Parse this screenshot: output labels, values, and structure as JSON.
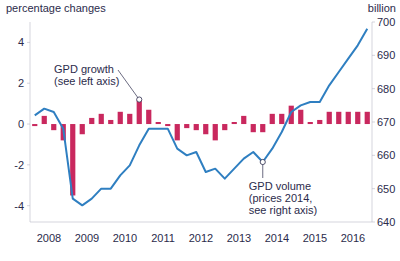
{
  "chart_data": {
    "type": "bar",
    "y_label": "percentage changes",
    "y2_label": "billion",
    "categories": [
      null,
      "2008",
      null,
      null,
      null,
      "2009",
      null,
      null,
      null,
      "2010",
      null,
      null,
      null,
      "2011",
      null,
      null,
      null,
      "2012",
      null,
      null,
      null,
      "2013",
      null,
      null,
      null,
      "2014",
      null,
      null,
      null,
      "2015",
      null,
      null,
      null,
      "2016",
      null,
      null
    ],
    "ylim": [
      -4.8,
      5
    ],
    "yticks": [
      -4,
      -2,
      0,
      2,
      4
    ],
    "y2lim": [
      640,
      700
    ],
    "y2ticks": [
      640,
      650,
      660,
      670,
      680,
      690,
      700
    ],
    "series": [
      {
        "type": "bar",
        "color": "#c9285e",
        "values": [
          -0.1,
          0.4,
          -0.3,
          -0.8,
          -3.5,
          -0.5,
          0.3,
          0.5,
          0.2,
          0.6,
          0.5,
          1.2,
          0.7,
          0.1,
          -0.1,
          -0.8,
          -0.2,
          -0.3,
          -0.5,
          -0.8,
          -0.3,
          0.1,
          0.4,
          -0.4,
          -0.4,
          0.5,
          0.5,
          0.9,
          0.7,
          0.1,
          0.2,
          0.6,
          0.6,
          0.6,
          0.6,
          0.6
        ]
      },
      {
        "type": "line",
        "axis": "y2",
        "color": "#2f7fc1",
        "values": [
          672,
          674,
          673,
          668,
          647,
          645,
          647,
          650,
          650,
          654,
          657,
          663,
          668,
          668,
          668,
          662,
          660,
          661,
          655,
          656,
          653,
          656,
          659,
          661,
          658,
          662,
          667,
          673,
          675,
          676,
          676,
          681,
          685,
          689,
          693,
          698
        ]
      }
    ],
    "annotations": [
      {
        "text": [
          "GPD growth",
          "(see left axis)"
        ]
      },
      {
        "text": [
          "GPD volume",
          "(prices 2014,",
          "see right axis)"
        ]
      }
    ]
  }
}
